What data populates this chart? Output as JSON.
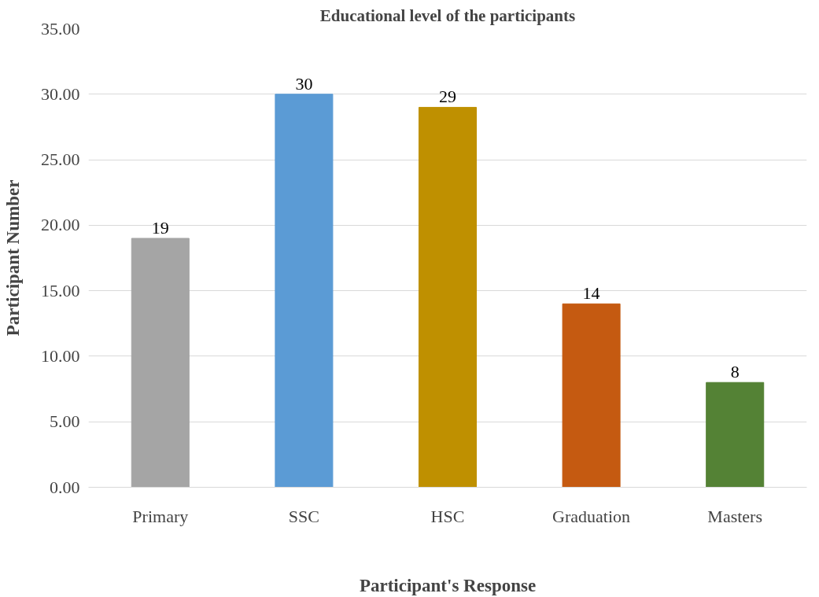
{
  "chart_data": {
    "type": "bar",
    "title": "Educational level of the participants",
    "xlabel": "Participant's Response",
    "ylabel": "Participant Number",
    "categories": [
      "Primary",
      "SSC",
      "HSC",
      "Graduation",
      "Masters"
    ],
    "values": [
      19,
      30,
      29,
      14,
      8
    ],
    "colors": [
      "#a5a5a5",
      "#5b9bd5",
      "#bf9000",
      "#c55a11",
      "#548235"
    ],
    "ylim": [
      0,
      35
    ],
    "yticks": [
      {
        "value": 0,
        "label": "0.00"
      },
      {
        "value": 5,
        "label": "5.00"
      },
      {
        "value": 10,
        "label": "10.00"
      },
      {
        "value": 15,
        "label": "15.00"
      },
      {
        "value": 20,
        "label": "20.00"
      },
      {
        "value": 25,
        "label": "25.00"
      },
      {
        "value": 30,
        "label": "30.00"
      },
      {
        "value": 35,
        "label": "35.00"
      }
    ],
    "grid": "y",
    "data_labels": true
  }
}
